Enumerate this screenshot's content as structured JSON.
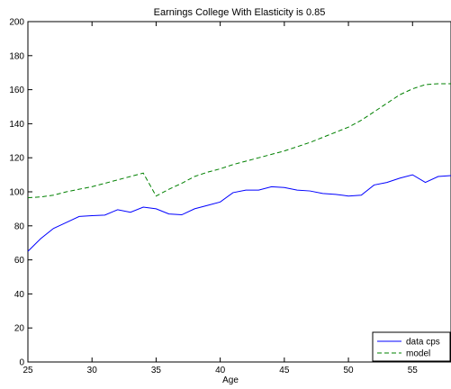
{
  "chart_data": {
    "type": "line",
    "title": "Earnings College With Elasticity is 0.85",
    "xlabel": "Age",
    "ylabel": "",
    "xlim": [
      25,
      58
    ],
    "ylim": [
      0,
      200
    ],
    "xticks": [
      25,
      30,
      35,
      40,
      45,
      50,
      55
    ],
    "yticks": [
      0,
      20,
      40,
      60,
      80,
      100,
      120,
      140,
      160,
      180,
      200
    ],
    "grid": false,
    "legend_position": "bottom-right",
    "series": [
      {
        "name": "data cps",
        "color": "#0000ff",
        "dash": "solid",
        "x": [
          25,
          26,
          27,
          28,
          29,
          30,
          31,
          32,
          33,
          34,
          35,
          36,
          37,
          38,
          39,
          40,
          41,
          42,
          43,
          44,
          45,
          46,
          47,
          48,
          49,
          50,
          51,
          52,
          53,
          54,
          55,
          56,
          57,
          58
        ],
        "y": [
          65,
          72.5,
          78.5,
          82,
          85.5,
          86,
          86.3,
          89.5,
          88,
          91,
          90,
          87,
          86.5,
          90,
          92,
          94,
          99.5,
          101,
          101,
          103,
          102.5,
          101,
          100.5,
          99,
          98.5,
          97.5,
          98,
          104,
          105.5,
          108,
          110,
          105.5,
          109,
          109.5
        ]
      },
      {
        "name": "model",
        "color": "#008000",
        "dash": "dashed",
        "x": [
          25,
          26,
          27,
          28,
          29,
          30,
          31,
          32,
          33,
          34,
          35,
          36,
          37,
          38,
          39,
          40,
          41,
          42,
          43,
          44,
          45,
          46,
          47,
          48,
          49,
          50,
          51,
          52,
          53,
          54,
          55,
          56,
          57,
          58
        ],
        "y": [
          96.5,
          97,
          98,
          100,
          101.5,
          103,
          105,
          107,
          109,
          111,
          97.5,
          101.5,
          105,
          109,
          111.5,
          113.5,
          116,
          118,
          120,
          122,
          124,
          126.5,
          129,
          132,
          135,
          138,
          142,
          147,
          152,
          157,
          160.5,
          163,
          163.5,
          163.5
        ]
      }
    ]
  }
}
